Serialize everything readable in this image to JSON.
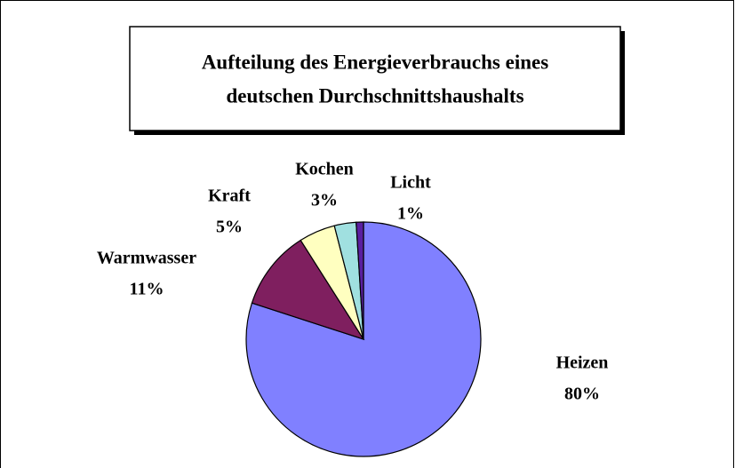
{
  "chart_data": {
    "type": "pie",
    "title": [
      "Aufteilung des Energieverbrauchs eines",
      "deutschen Durchschnittshaushalts"
    ],
    "categories": [
      "Heizen",
      "Warmwasser",
      "Kraft",
      "Kochen",
      "Licht"
    ],
    "values": [
      80,
      11,
      5,
      3,
      1
    ],
    "value_labels": [
      "80%",
      "11%",
      "5%",
      "3%",
      "1%"
    ],
    "colors": [
      "#8080ff",
      "#7f1f5f",
      "#ffffc0",
      "#a0e0e0",
      "#5a1fa0"
    ]
  }
}
